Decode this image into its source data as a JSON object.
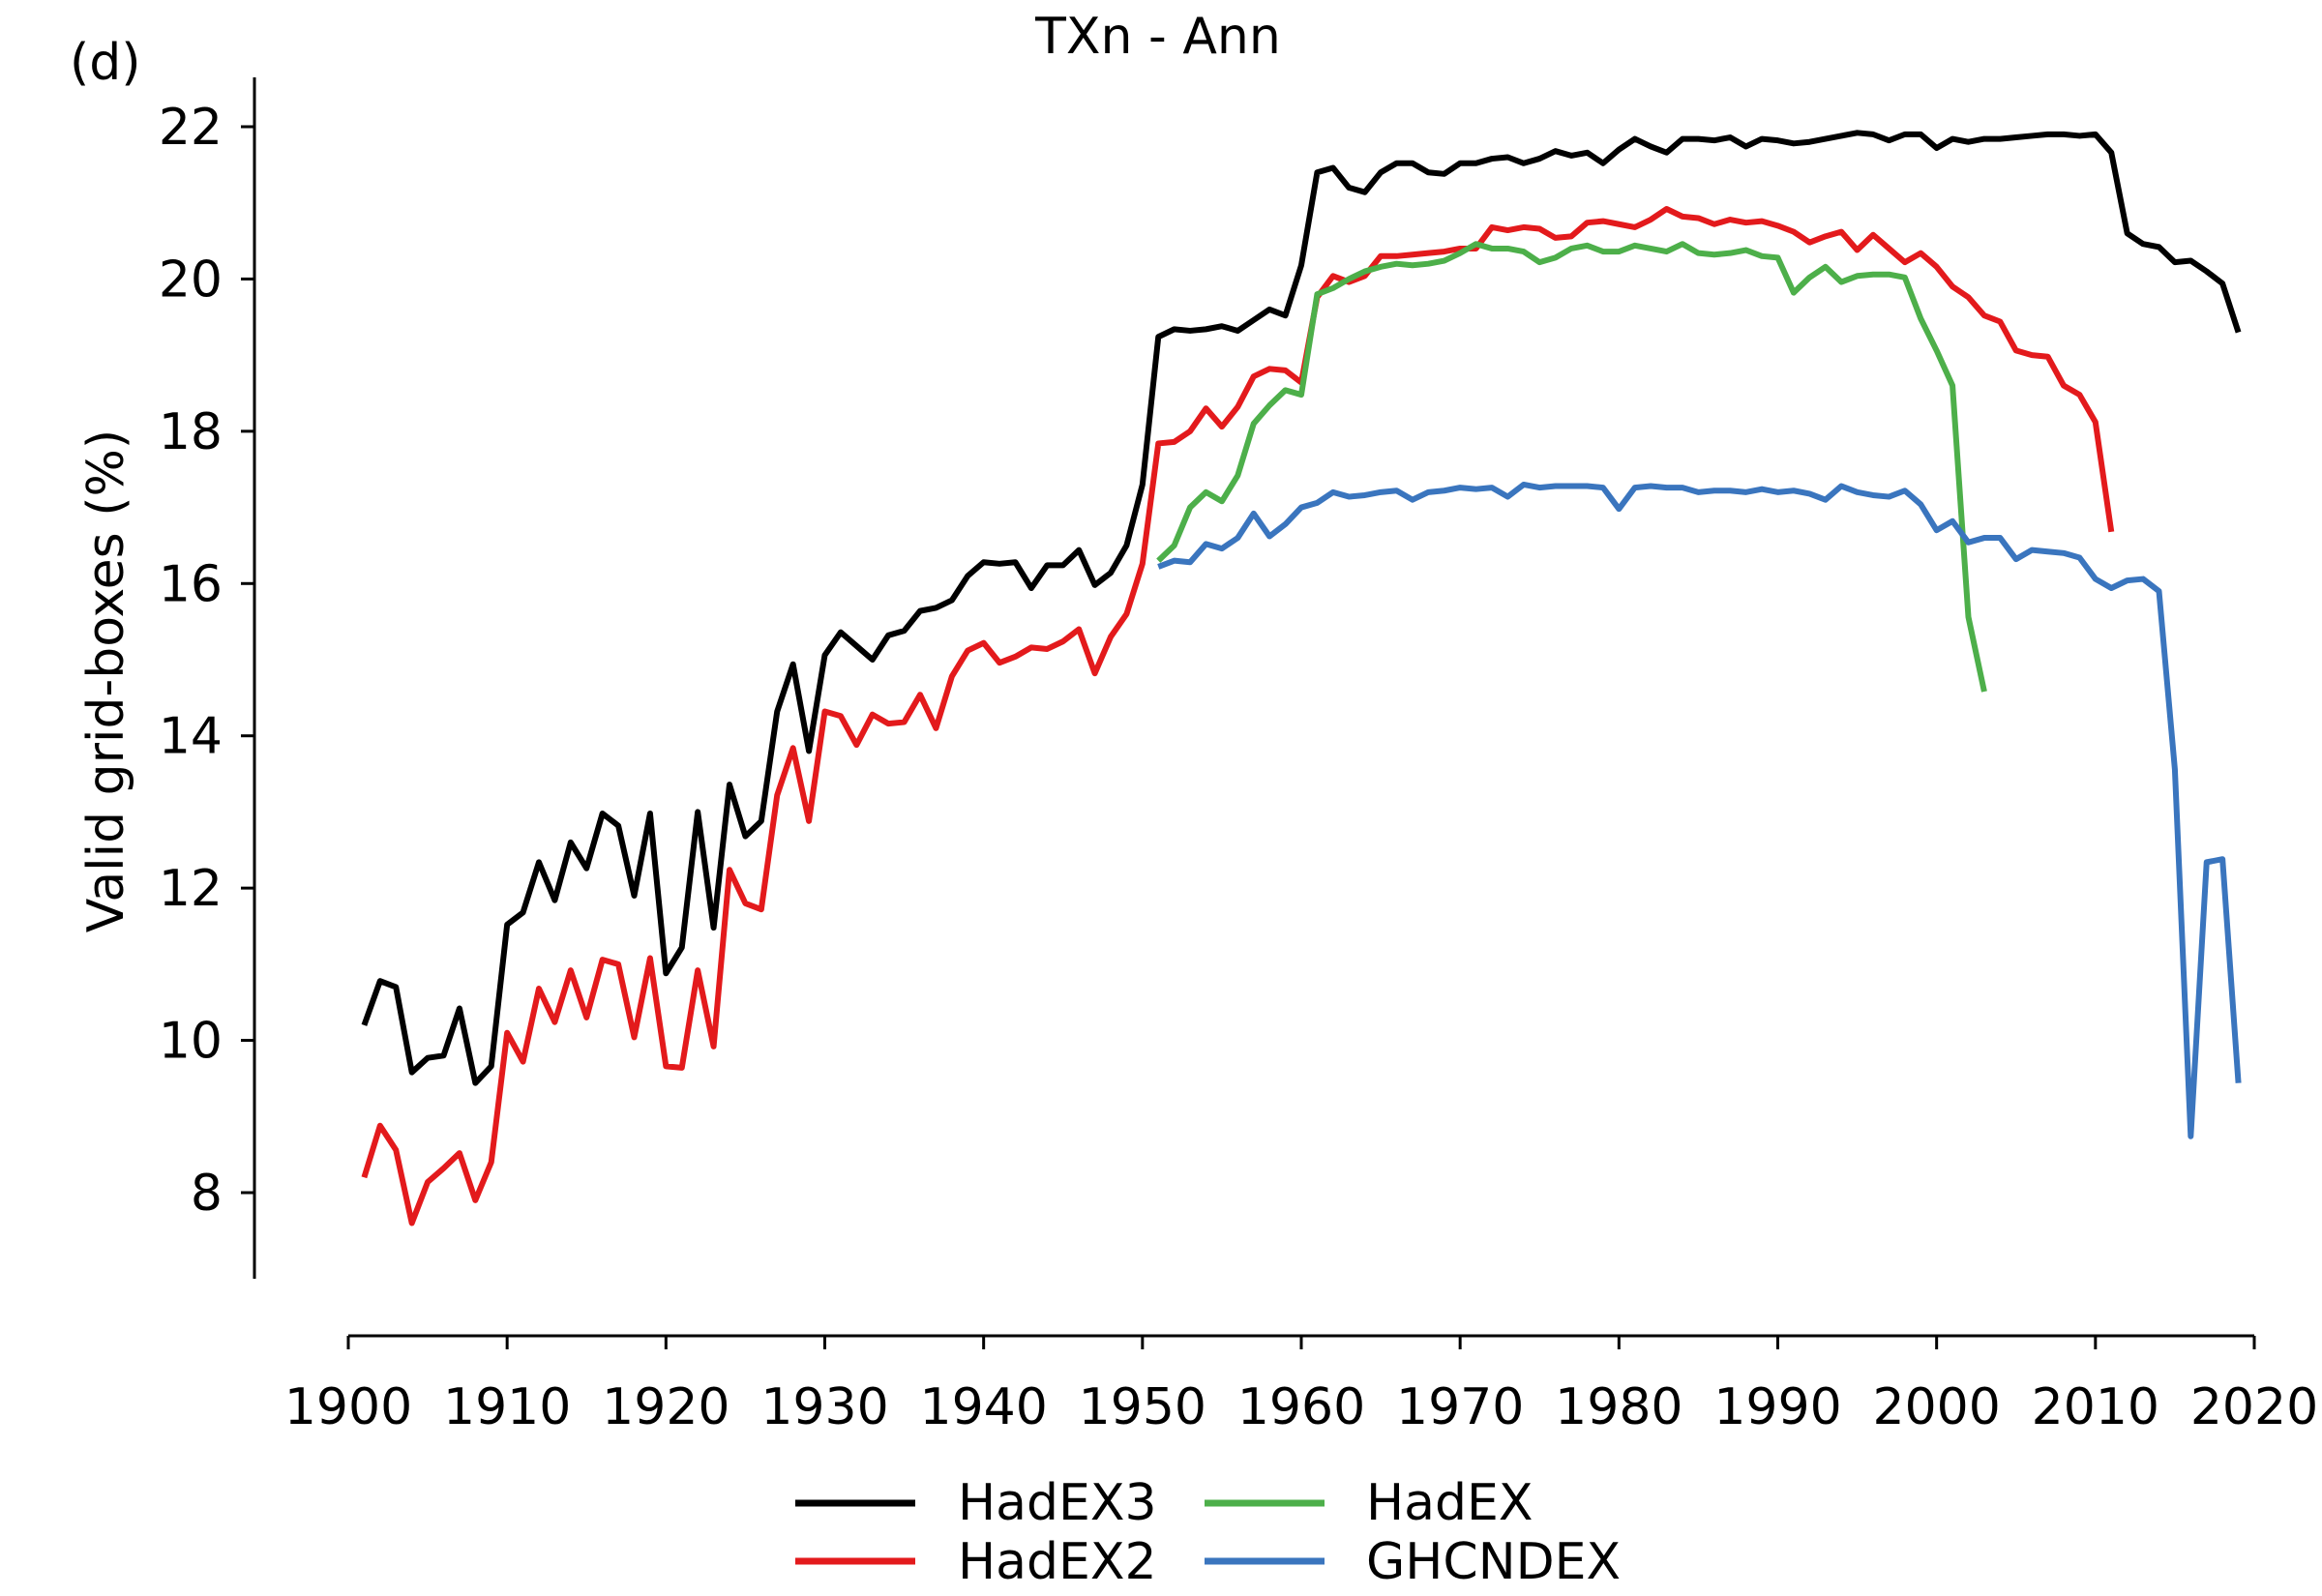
{
  "panel_label": "(d)",
  "chart_data": {
    "type": "line",
    "title": "TXn - Ann",
    "xlabel": "",
    "ylabel": "Valid grid-boxes (%)",
    "xlim": [
      1900,
      2020
    ],
    "ylim": [
      7,
      22.5
    ],
    "xticks": [
      1900,
      1910,
      1920,
      1930,
      1940,
      1950,
      1960,
      1970,
      1980,
      1990,
      2000,
      2010,
      2020
    ],
    "yticks": [
      8,
      10,
      12,
      14,
      16,
      18,
      20,
      22
    ],
    "xtick_labels": [
      "1900",
      "1910",
      "1920",
      "1930",
      "1940",
      "1950",
      "1960",
      "1970",
      "1980",
      "1990",
      "2000",
      "2010",
      "2020"
    ],
    "ytick_labels": [
      "8",
      "10",
      "12",
      "14",
      "16",
      "18",
      "20",
      "22"
    ],
    "grid": false,
    "legend_position": "bottom-center",
    "series": [
      {
        "name": "HadEX3",
        "color": "#000000",
        "start_year": 1901,
        "values": [
          10.2,
          10.78,
          10.7,
          9.58,
          9.77,
          9.8,
          10.42,
          9.44,
          9.66,
          11.52,
          11.68,
          12.34,
          11.84,
          12.6,
          12.26,
          12.98,
          12.82,
          11.9,
          12.98,
          10.88,
          11.22,
          13.0,
          11.48,
          13.36,
          12.68,
          12.88,
          14.32,
          14.94,
          13.8,
          15.06,
          15.36,
          15.18,
          15.0,
          15.32,
          15.38,
          15.64,
          15.68,
          15.78,
          16.1,
          16.28,
          16.26,
          16.28,
          15.94,
          16.24,
          16.24,
          16.44,
          15.98,
          16.14,
          16.5,
          17.3,
          19.24,
          19.34,
          19.32,
          19.34,
          19.38,
          19.32,
          19.46,
          19.6,
          19.52,
          20.18,
          21.4,
          21.46,
          21.2,
          21.14,
          21.4,
          21.52,
          21.52,
          21.4,
          21.38,
          21.52,
          21.52,
          21.58,
          21.6,
          21.52,
          21.58,
          21.68,
          21.62,
          21.66,
          21.52,
          21.7,
          21.84,
          21.74,
          21.66,
          21.84,
          21.84,
          21.82,
          21.86,
          21.74,
          21.84,
          21.82,
          21.78,
          21.8,
          21.84,
          21.88,
          21.92,
          21.9,
          21.82,
          21.9,
          21.9,
          21.72,
          21.84,
          21.8,
          21.84,
          21.84,
          21.86,
          21.88,
          21.9,
          21.9,
          21.88,
          21.9,
          21.66,
          20.6,
          20.46,
          20.42,
          20.22,
          20.24,
          20.1,
          19.94,
          19.3
        ]
      },
      {
        "name": "HadEX2",
        "color": "#e31a1c",
        "start_year": 1901,
        "values": [
          8.2,
          8.88,
          8.56,
          7.6,
          8.14,
          8.32,
          8.52,
          7.9,
          8.4,
          10.1,
          9.72,
          10.68,
          10.24,
          10.92,
          10.3,
          11.06,
          11.0,
          10.04,
          11.08,
          9.66,
          9.64,
          10.92,
          9.92,
          12.24,
          11.8,
          11.72,
          13.22,
          13.84,
          12.88,
          14.32,
          14.26,
          13.88,
          14.28,
          14.16,
          14.18,
          14.54,
          14.1,
          14.78,
          15.12,
          15.22,
          14.96,
          15.04,
          15.16,
          15.14,
          15.24,
          15.4,
          14.82,
          15.3,
          15.6,
          16.26,
          17.84,
          17.86,
          18.0,
          18.3,
          18.06,
          18.32,
          18.72,
          18.82,
          18.8,
          18.64,
          19.76,
          20.04,
          19.96,
          20.04,
          20.3,
          20.3,
          20.32,
          20.34,
          20.36,
          20.4,
          20.4,
          20.68,
          20.64,
          20.68,
          20.66,
          20.54,
          20.56,
          20.74,
          20.76,
          20.72,
          20.68,
          20.78,
          20.92,
          20.82,
          20.8,
          20.72,
          20.78,
          20.74,
          20.76,
          20.7,
          20.62,
          20.48,
          20.56,
          20.62,
          20.38,
          20.58,
          20.4,
          20.22,
          20.34,
          20.16,
          19.9,
          19.76,
          19.52,
          19.44,
          19.06,
          19.0,
          18.98,
          18.6,
          18.48,
          18.12,
          16.68
        ]
      },
      {
        "name": "HadEX",
        "color": "#4daf4a",
        "start_year": 1951,
        "values": [
          16.3,
          16.5,
          17.0,
          17.2,
          17.08,
          17.42,
          18.1,
          18.34,
          18.54,
          18.48,
          19.8,
          19.88,
          20.0,
          20.1,
          20.16,
          20.2,
          20.18,
          20.2,
          20.24,
          20.34,
          20.46,
          20.4,
          20.4,
          20.36,
          20.22,
          20.28,
          20.4,
          20.44,
          20.36,
          20.36,
          20.44,
          20.4,
          20.36,
          20.46,
          20.34,
          20.32,
          20.34,
          20.38,
          20.3,
          20.28,
          19.82,
          20.02,
          20.16,
          19.96,
          20.04,
          20.06,
          20.06,
          20.02,
          19.48,
          19.06,
          18.6,
          15.56,
          14.58
        ]
      },
      {
        "name": "GHCNDEX",
        "color": "#3a75be",
        "start_year": 1951,
        "values": [
          16.22,
          16.3,
          16.28,
          16.52,
          16.46,
          16.6,
          16.92,
          16.62,
          16.78,
          17.0,
          17.06,
          17.2,
          17.14,
          17.16,
          17.2,
          17.22,
          17.1,
          17.2,
          17.22,
          17.26,
          17.24,
          17.26,
          17.14,
          17.3,
          17.26,
          17.28,
          17.28,
          17.28,
          17.26,
          16.98,
          17.26,
          17.28,
          17.26,
          17.26,
          17.2,
          17.22,
          17.22,
          17.2,
          17.24,
          17.2,
          17.22,
          17.18,
          17.1,
          17.28,
          17.2,
          17.16,
          17.14,
          17.22,
          17.04,
          16.7,
          16.82,
          16.54,
          16.6,
          16.6,
          16.32,
          16.44,
          16.42,
          16.4,
          16.34,
          16.06,
          15.94,
          16.04,
          16.06,
          15.9,
          13.56,
          8.74,
          12.34,
          12.38,
          9.44
        ]
      }
    ]
  }
}
